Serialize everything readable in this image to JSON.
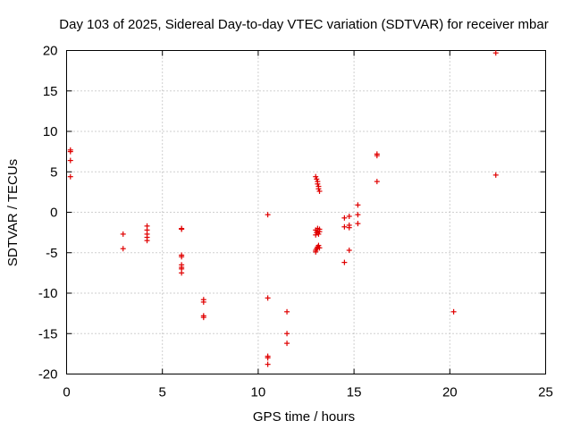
{
  "chart_data": {
    "type": "scatter",
    "title": "Day 103 of 2025, Sidereal Day-to-day VTEC variation (SDTVAR) for receiver mbar",
    "xlabel": "GPS time / hours",
    "ylabel": "SDTVAR / TECUs",
    "xlim": [
      0,
      25
    ],
    "ylim": [
      -20,
      20
    ],
    "xticks": [
      0,
      5,
      10,
      15,
      20,
      25
    ],
    "yticks": [
      -20,
      -15,
      -10,
      -5,
      0,
      5,
      10,
      15,
      20
    ],
    "xtick_labels": [
      "0",
      "5",
      "10",
      "15",
      "20",
      "25"
    ],
    "ytick_labels": [
      "-20",
      "-15",
      "-10",
      "-5",
      "0",
      "5",
      "10",
      "15",
      "20"
    ],
    "grid": true,
    "marker": "plus",
    "color": "#e00000",
    "series": [
      {
        "name": "SDTVAR",
        "points": [
          [
            0.2,
            7.7
          ],
          [
            0.2,
            7.5
          ],
          [
            0.2,
            6.4
          ],
          [
            0.2,
            4.4
          ],
          [
            2.95,
            -2.7
          ],
          [
            2.95,
            -4.5
          ],
          [
            4.2,
            -1.7
          ],
          [
            4.2,
            -2.2
          ],
          [
            4.2,
            -2.7
          ],
          [
            4.2,
            -3.1
          ],
          [
            4.2,
            -3.5
          ],
          [
            6.0,
            -2.0
          ],
          [
            6.0,
            -2.1
          ],
          [
            6.0,
            -5.3
          ],
          [
            6.0,
            -5.5
          ],
          [
            6.0,
            -6.5
          ],
          [
            6.0,
            -6.8
          ],
          [
            6.0,
            -7.0
          ],
          [
            6.0,
            -7.5
          ],
          [
            7.15,
            -10.8
          ],
          [
            7.15,
            -11.1
          ],
          [
            7.15,
            -12.8
          ],
          [
            7.15,
            -13.0
          ],
          [
            10.5,
            -0.3
          ],
          [
            10.5,
            -10.6
          ],
          [
            10.5,
            -17.8
          ],
          [
            10.5,
            -18.0
          ],
          [
            10.5,
            -18.8
          ],
          [
            11.5,
            -12.3
          ],
          [
            11.5,
            -15.0
          ],
          [
            11.5,
            -16.2
          ],
          [
            13.0,
            4.4
          ],
          [
            13.05,
            4.1
          ],
          [
            13.1,
            3.8
          ],
          [
            13.1,
            3.5
          ],
          [
            13.15,
            3.2
          ],
          [
            13.15,
            2.9
          ],
          [
            13.2,
            2.6
          ],
          [
            13.0,
            -2.2
          ],
          [
            13.05,
            -2.5
          ],
          [
            13.1,
            -2.3
          ],
          [
            13.15,
            -2.7
          ],
          [
            13.2,
            -2.4
          ],
          [
            13.0,
            -2.8
          ],
          [
            13.1,
            -2.0
          ],
          [
            13.2,
            -2.1
          ],
          [
            13.0,
            -4.7
          ],
          [
            13.05,
            -4.5
          ],
          [
            13.1,
            -4.3
          ],
          [
            13.15,
            -4.1
          ],
          [
            13.2,
            -4.4
          ],
          [
            13.0,
            -4.9
          ],
          [
            14.5,
            -0.7
          ],
          [
            14.5,
            -1.8
          ],
          [
            14.5,
            -6.2
          ],
          [
            14.75,
            -0.5
          ],
          [
            14.75,
            -1.6
          ],
          [
            14.75,
            -1.9
          ],
          [
            14.75,
            -4.7
          ],
          [
            15.2,
            0.9
          ],
          [
            15.2,
            -0.3
          ],
          [
            15.2,
            -1.4
          ],
          [
            16.2,
            7.2
          ],
          [
            16.2,
            7.0
          ],
          [
            16.2,
            3.8
          ],
          [
            20.2,
            -12.3
          ],
          [
            22.4,
            19.7
          ],
          [
            22.4,
            4.6
          ]
        ]
      }
    ]
  }
}
